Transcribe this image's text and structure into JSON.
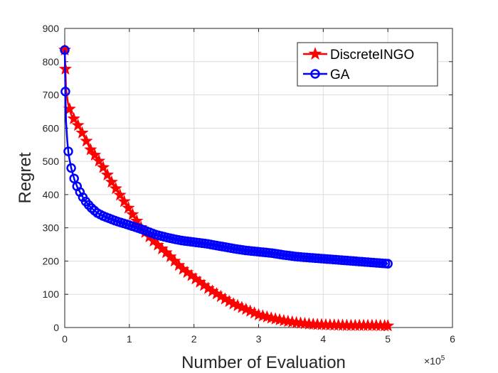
{
  "chart_data": {
    "type": "line",
    "title": "",
    "xlabel": "Number of Evaluation",
    "ylabel": "Regret",
    "x_exponent_label": "×10",
    "x_exponent_power": "5",
    "xlim": [
      0,
      6
    ],
    "ylim": [
      0,
      900
    ],
    "xticks": [
      0,
      1,
      2,
      3,
      4,
      5,
      6
    ],
    "yticks": [
      0,
      100,
      200,
      300,
      400,
      500,
      600,
      700,
      800,
      900
    ],
    "grid": true,
    "legend_location": "top-right",
    "series": [
      {
        "name": "DiscreteINGO",
        "color": "#ff0000",
        "marker": "star",
        "x": [
          0,
          0.02,
          0.05,
          0.1,
          0.2,
          0.3,
          0.4,
          0.5,
          0.6,
          0.7,
          0.8,
          0.9,
          1.0,
          1.1,
          1.2,
          1.4,
          1.6,
          1.8,
          2.0,
          2.2,
          2.4,
          2.6,
          2.8,
          3.0,
          3.2,
          3.4,
          3.6,
          3.8,
          4.0,
          4.2,
          4.4,
          4.6,
          4.8,
          5.0
        ],
        "y": [
          835,
          720,
          675,
          640,
          610,
          575,
          535,
          510,
          480,
          445,
          415,
          385,
          355,
          325,
          295,
          255,
          220,
          180,
          150,
          120,
          95,
          72,
          55,
          38,
          28,
          20,
          14,
          10,
          8,
          7,
          6,
          6,
          6,
          5
        ]
      },
      {
        "name": "GA",
        "color": "#0000ff",
        "marker": "circle",
        "x": [
          0,
          0.01,
          0.02,
          0.04,
          0.06,
          0.1,
          0.15,
          0.2,
          0.3,
          0.4,
          0.5,
          0.6,
          0.8,
          1.0,
          1.2,
          1.4,
          1.6,
          1.8,
          2.0,
          2.2,
          2.4,
          2.6,
          2.8,
          3.0,
          3.2,
          3.4,
          3.6,
          3.8,
          4.0,
          4.2,
          4.4,
          4.6,
          4.8,
          5.0
        ],
        "y": [
          835,
          710,
          620,
          560,
          520,
          480,
          445,
          420,
          385,
          362,
          345,
          335,
          320,
          308,
          295,
          280,
          270,
          262,
          257,
          252,
          245,
          238,
          232,
          228,
          224,
          218,
          213,
          210,
          207,
          204,
          201,
          198,
          195,
          192
        ]
      }
    ]
  }
}
